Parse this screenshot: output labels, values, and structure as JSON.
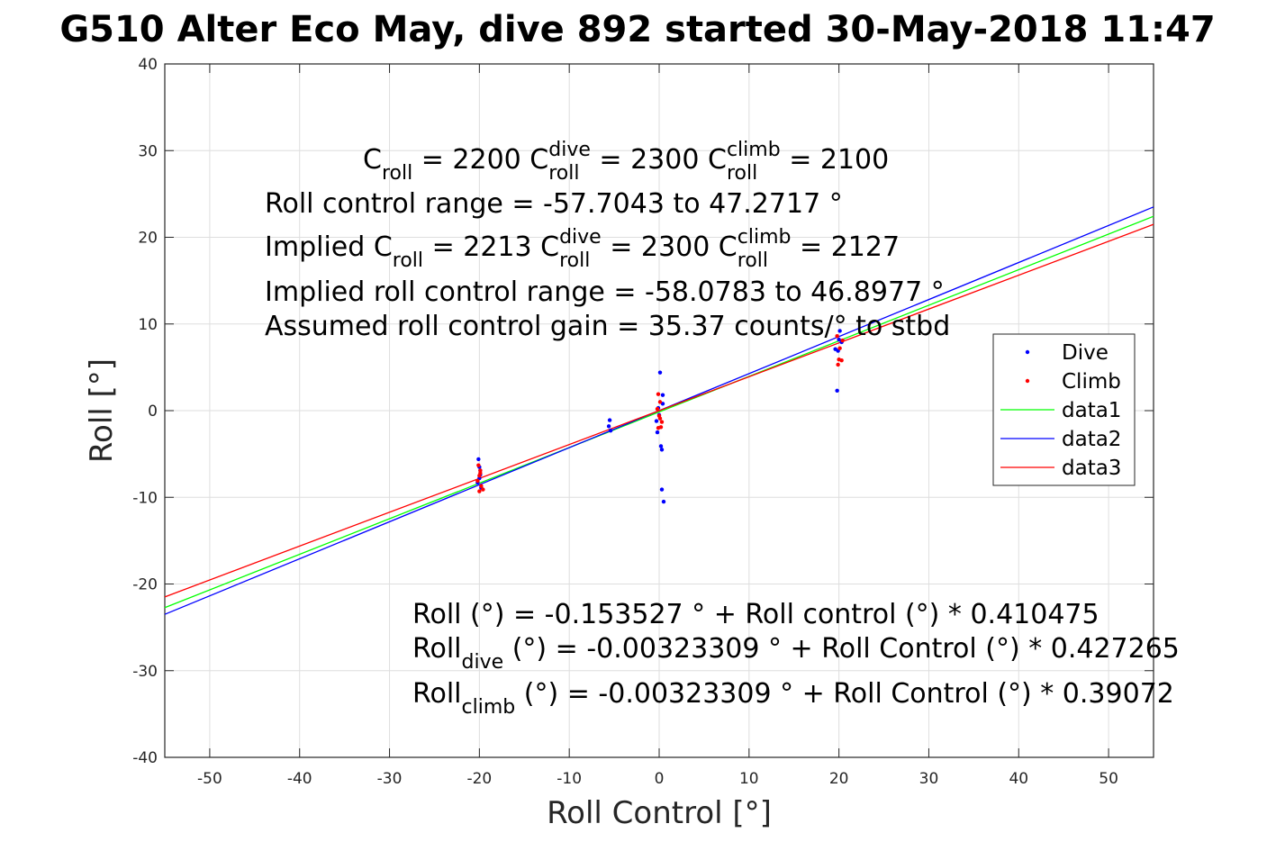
{
  "chart_data": {
    "type": "scatter",
    "title": "G510 Alter Eco May, dive 892 started 30-May-2018 11:47",
    "xlabel": "Roll Control [°]",
    "ylabel": "Roll [°]",
    "xlim": [
      -55,
      55
    ],
    "ylim": [
      -40,
      40
    ],
    "xticks": [
      -50,
      -40,
      -30,
      -20,
      -10,
      0,
      10,
      20,
      30,
      40,
      50
    ],
    "yticks": [
      -40,
      -30,
      -20,
      -10,
      0,
      10,
      20,
      30,
      40
    ],
    "grid": true,
    "legend_position": "right",
    "legend": [
      "Dive",
      "Climb",
      "data1",
      "data2",
      "data3"
    ],
    "series": [
      {
        "name": "Dive",
        "kind": "points",
        "color": "#0000ff",
        "x": [
          -20.1,
          -20.0,
          -19.9,
          -20.2,
          -19.8,
          -20.0,
          -19.9,
          -5.5,
          -5.6,
          -5.4,
          0.1,
          0.4,
          -0.2,
          0.2,
          0.3,
          0.3,
          0.5,
          0.4,
          -0.1,
          0.0,
          -0.3,
          19.6,
          19.8,
          20.0,
          20.1,
          19.9,
          20.3
        ],
        "y": [
          -5.6,
          -6.5,
          -7.4,
          -8.3,
          -8.9,
          -7.8,
          -6.9,
          -1.1,
          -1.8,
          -2.3,
          4.4,
          1.8,
          -2.5,
          -4.1,
          -4.5,
          -9.1,
          -10.5,
          0.8,
          0.3,
          -0.5,
          -1.2,
          7.1,
          2.3,
          8.2,
          9.2,
          6.9,
          7.9
        ]
      },
      {
        "name": "Climb",
        "kind": "points",
        "color": "#ff0000",
        "x": [
          -20.1,
          -19.9,
          -20.0,
          -20.2,
          -19.8,
          -19.6,
          -20.0,
          -19.9,
          -0.1,
          0.1,
          -0.2,
          0.0,
          0.3,
          0.2,
          -0.1,
          0.1,
          19.9,
          20.0,
          20.1,
          20.4,
          20.3,
          19.8
        ],
        "y": [
          -6.3,
          -6.9,
          -7.5,
          -8.1,
          -8.7,
          -9.1,
          -9.3,
          -7.2,
          1.9,
          1.0,
          0.2,
          -0.6,
          -1.3,
          -1.9,
          -2.0,
          -0.9,
          5.3,
          5.9,
          7.2,
          8.1,
          5.8,
          8.6
        ]
      },
      {
        "name": "data1",
        "kind": "line",
        "color": "#00ff00",
        "x": [
          -55,
          55
        ],
        "y": [
          -22.73,
          22.42
        ]
      },
      {
        "name": "data2",
        "kind": "line",
        "color": "#0000ff",
        "x": [
          -55,
          55
        ],
        "y": [
          -23.5,
          23.5
        ]
      },
      {
        "name": "data3",
        "kind": "line",
        "color": "#ff0000",
        "x": [
          -55,
          55
        ],
        "y": [
          -21.49,
          21.49
        ]
      }
    ],
    "annotations": [
      [
        {
          "t": "C"
        },
        {
          "t": "roll",
          "sub": true
        },
        {
          "t": " = 2200      C"
        },
        {
          "t": "roll",
          "sub": true
        },
        {
          "t": "dive",
          "sup": true
        },
        {
          "t": " = 2300      C"
        },
        {
          "t": "roll",
          "sub": true
        },
        {
          "t": "climb",
          "sup": true
        },
        {
          "t": " = 2100"
        }
      ],
      [
        {
          "t": "Roll control range = -57.7043 to 47.2717 °"
        }
      ],
      [
        {
          "t": "Implied C"
        },
        {
          "t": "roll",
          "sub": true
        },
        {
          "t": " = 2213      C"
        },
        {
          "t": "roll",
          "sub": true
        },
        {
          "t": "dive",
          "sup": true
        },
        {
          "t": " = 2300      C"
        },
        {
          "t": "roll",
          "sub": true
        },
        {
          "t": "climb",
          "sup": true
        },
        {
          "t": " = 2127"
        }
      ],
      [
        {
          "t": "Implied roll control range = -58.0783 to 46.8977 °"
        }
      ],
      [
        {
          "t": "Assumed roll control gain = 35.37 counts/° to stbd"
        }
      ],
      [
        {
          "t": "Roll (°) = -0.153527 ° + Roll control (°) * 0.410475"
        }
      ],
      [
        {
          "t": "Roll"
        },
        {
          "t": "dive",
          "sub": true
        },
        {
          "t": " (°) = -0.00323309 ° + Roll Control (°) * 0.427265"
        }
      ],
      [
        {
          "t": "Roll"
        },
        {
          "t": "climb",
          "sub": true
        },
        {
          "t": " (°) = -0.00323309 ° + Roll Control (°) * 0.39072"
        }
      ]
    ]
  }
}
